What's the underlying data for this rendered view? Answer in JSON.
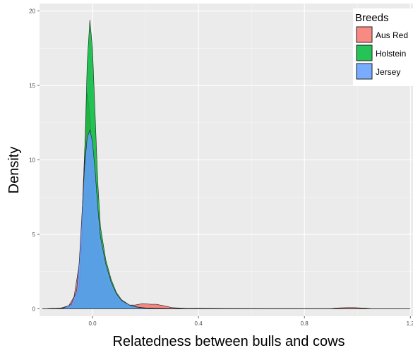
{
  "chart_data": {
    "type": "area",
    "xlabel": "Relatedness between bulls and cows",
    "ylabel": "Density",
    "xlim": [
      -0.2,
      1.21
    ],
    "ylim": [
      -0.5,
      20.5
    ],
    "x_ticks": [
      "0.0",
      "0.4",
      "0.8",
      "1.2"
    ],
    "x_tick_values": [
      0.0,
      0.4,
      0.8,
      1.2
    ],
    "y_ticks": [
      "0",
      "5",
      "10",
      "15",
      "20"
    ],
    "y_tick_values": [
      0,
      5,
      10,
      15,
      20
    ],
    "grid": true,
    "legend": {
      "title": "Breeds",
      "placement": "top-right"
    },
    "series": [
      {
        "name": "Aus Red",
        "color": "#F8766D",
        "points": [
          [
            -0.19,
            0
          ],
          [
            -0.12,
            0.05
          ],
          [
            -0.09,
            0.2
          ],
          [
            -0.07,
            0.8
          ],
          [
            -0.05,
            3.0
          ],
          [
            -0.04,
            6.0
          ],
          [
            -0.03,
            10.5
          ],
          [
            -0.02,
            14.5
          ],
          [
            -0.01,
            13.0
          ],
          [
            0.0,
            10.0
          ],
          [
            0.01,
            6.5
          ],
          [
            0.02,
            4.5
          ],
          [
            0.04,
            2.7
          ],
          [
            0.06,
            1.6
          ],
          [
            0.08,
            0.9
          ],
          [
            0.1,
            0.5
          ],
          [
            0.13,
            0.25
          ],
          [
            0.16,
            0.25
          ],
          [
            0.19,
            0.35
          ],
          [
            0.22,
            0.3
          ],
          [
            0.24,
            0.3
          ],
          [
            0.27,
            0.2
          ],
          [
            0.3,
            0.08
          ],
          [
            0.33,
            0.05
          ],
          [
            0.36,
            0.02
          ],
          [
            0.4,
            0.03
          ],
          [
            0.45,
            0.02
          ],
          [
            0.5,
            0.01
          ],
          [
            0.9,
            0.01
          ],
          [
            0.93,
            0.06
          ],
          [
            0.96,
            0.08
          ],
          [
            0.99,
            0.08
          ],
          [
            1.02,
            0.05
          ],
          [
            1.05,
            0.01
          ],
          [
            1.2,
            0
          ]
        ]
      },
      {
        "name": "Holstein",
        "color": "#00BA38",
        "points": [
          [
            -0.19,
            0
          ],
          [
            -0.1,
            0.05
          ],
          [
            -0.07,
            0.3
          ],
          [
            -0.05,
            1.5
          ],
          [
            -0.04,
            4.5
          ],
          [
            -0.03,
            10.0
          ],
          [
            -0.02,
            16.5
          ],
          [
            -0.01,
            19.4
          ],
          [
            0.0,
            17.5
          ],
          [
            0.01,
            13.0
          ],
          [
            0.02,
            8.5
          ],
          [
            0.03,
            5.5
          ],
          [
            0.05,
            3.3
          ],
          [
            0.07,
            2.0
          ],
          [
            0.09,
            1.1
          ],
          [
            0.11,
            0.6
          ],
          [
            0.14,
            0.25
          ],
          [
            0.17,
            0.12
          ],
          [
            0.2,
            0.06
          ],
          [
            0.25,
            0.03
          ],
          [
            0.3,
            0.01
          ],
          [
            0.35,
            0.02
          ],
          [
            0.4,
            0.01
          ],
          [
            0.45,
            0.02
          ],
          [
            0.5,
            0.01
          ],
          [
            1.2,
            0
          ]
        ]
      },
      {
        "name": "Jersey",
        "color": "#619CFF",
        "points": [
          [
            -0.19,
            0
          ],
          [
            -0.11,
            0.05
          ],
          [
            -0.08,
            0.3
          ],
          [
            -0.06,
            1.2
          ],
          [
            -0.05,
            3.2
          ],
          [
            -0.04,
            6.3
          ],
          [
            -0.03,
            9.5
          ],
          [
            -0.02,
            11.5
          ],
          [
            -0.01,
            12.0
          ],
          [
            0.0,
            11.2
          ],
          [
            0.01,
            9.2
          ],
          [
            0.02,
            6.8
          ],
          [
            0.03,
            4.8
          ],
          [
            0.05,
            3.0
          ],
          [
            0.07,
            1.8
          ],
          [
            0.09,
            1.0
          ],
          [
            0.11,
            0.55
          ],
          [
            0.14,
            0.25
          ],
          [
            0.17,
            0.1
          ],
          [
            0.2,
            0.05
          ],
          [
            0.25,
            0.02
          ],
          [
            0.3,
            0.01
          ],
          [
            0.35,
            0.01
          ],
          [
            1.2,
            0
          ]
        ]
      }
    ]
  }
}
